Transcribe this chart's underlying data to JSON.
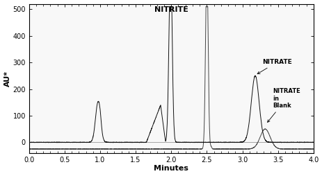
{
  "title": "NITRITE",
  "xlabel": "Minutes",
  "ylabel": "AU*",
  "xlim": [
    0.0,
    4.0
  ],
  "ylim": [
    -40,
    520
  ],
  "yticks": [
    0,
    100,
    200,
    300,
    400,
    500
  ],
  "xticks": [
    0.0,
    0.5,
    1.0,
    1.5,
    2.0,
    2.5,
    3.0,
    3.5,
    4.0
  ],
  "background_color": "#ffffff",
  "plot_bg": "#f8f8f8",
  "line_color": "#111111",
  "blank_line_color": "#444444",
  "annotation_nitrate": "NITRATE",
  "annotation_blank": "NITRATE\nin\nBlank",
  "fig_width": 4.64,
  "fig_height": 2.54,
  "dpi": 100,
  "title_fontsize": 8,
  "label_fontsize": 8,
  "tick_fontsize": 7
}
